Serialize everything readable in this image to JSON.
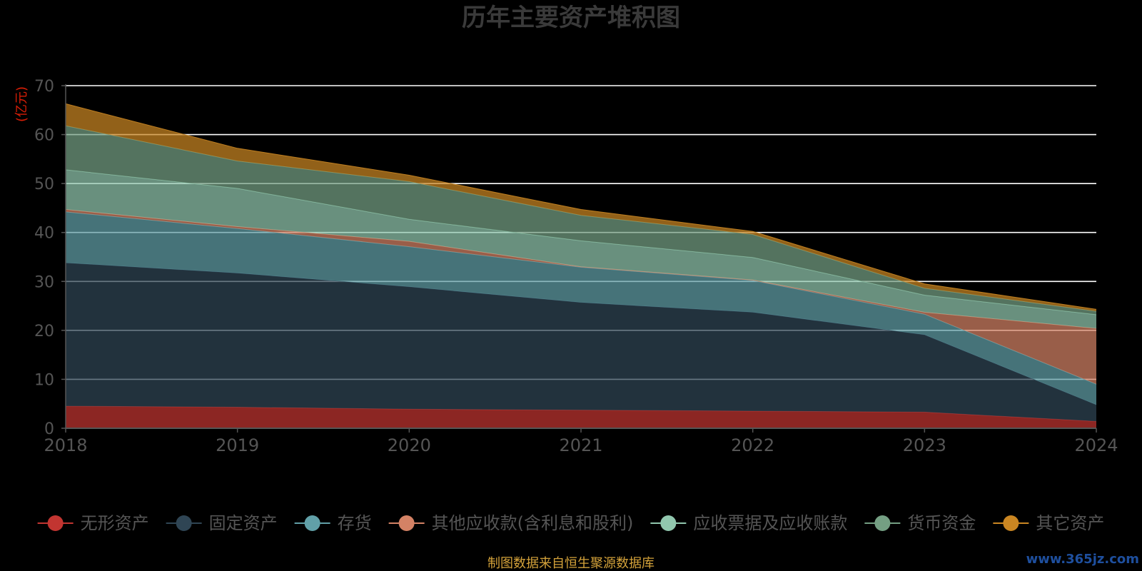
{
  "chart_data": {
    "type": "area",
    "stacked": true,
    "title": "历年主要资产堆积图",
    "ylabel": "(亿元)",
    "xlabel": "",
    "categories": [
      "2018",
      "2019",
      "2020",
      "2021",
      "2022",
      "2023",
      "2024"
    ],
    "ylim": [
      0,
      70
    ],
    "yticks": [
      0,
      10,
      20,
      30,
      40,
      50,
      60,
      70
    ],
    "grid": true,
    "legend_position": "bottom",
    "series": [
      {
        "name": "无形资产",
        "color": "#c23531",
        "values": [
          4.5,
          4.3,
          3.9,
          3.7,
          3.5,
          3.3,
          1.4
        ]
      },
      {
        "name": "固定资产",
        "color": "#2f4554",
        "values": [
          29.3,
          27.4,
          25.0,
          22.0,
          20.2,
          15.8,
          3.4
        ]
      },
      {
        "name": "存货",
        "color": "#61a0a8",
        "values": [
          10.4,
          9.1,
          8.2,
          7.2,
          6.5,
          4.2,
          4.2
        ]
      },
      {
        "name": "其他应收款(含利息和股利)",
        "color": "#d48265",
        "values": [
          0.5,
          0.4,
          1.1,
          0.1,
          0.1,
          0.4,
          11.4
        ]
      },
      {
        "name": "应收票据及应收账款",
        "color": "#91c7ae",
        "values": [
          8.1,
          7.8,
          4.5,
          5.3,
          4.6,
          3.5,
          2.8
        ]
      },
      {
        "name": "货币资金",
        "color": "#749f83",
        "values": [
          9.0,
          5.6,
          7.7,
          5.2,
          4.7,
          1.4,
          0.7
        ]
      },
      {
        "name": "其它资产",
        "color": "#ca8622",
        "values": [
          4.5,
          2.6,
          1.3,
          1.2,
          0.6,
          0.9,
          0.4
        ]
      }
    ]
  },
  "footer": {
    "source": "制图数据来自恒生聚源数据库",
    "watermark": "www.365jz.com"
  }
}
